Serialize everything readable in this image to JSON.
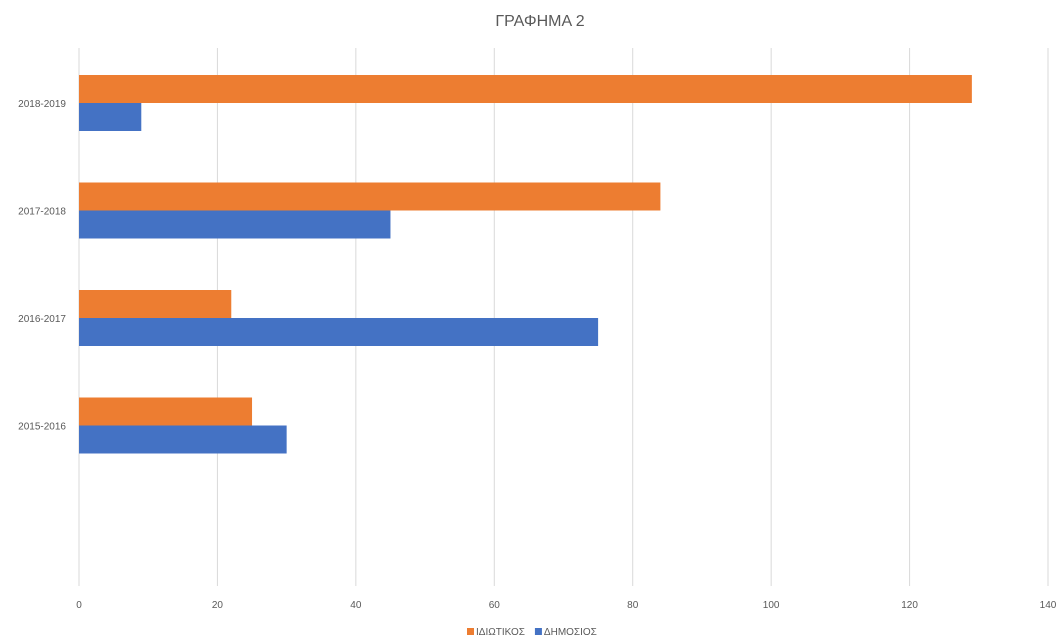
{
  "chart_data": {
    "type": "bar",
    "orientation": "horizontal",
    "title": "ΓΡΑΦΗΜΑ 2",
    "categories": [
      "2015-2016",
      "2016-2017",
      "2017-2018",
      "2018-2019"
    ],
    "series": [
      {
        "name": "ΙΔΙΩΤΙΚΟΣ",
        "color": "#ed7d31",
        "values": [
          25,
          22,
          84,
          129
        ]
      },
      {
        "name": "ΔΗΜΟΣΙΟΣ",
        "color": "#4472c4",
        "values": [
          30,
          75,
          45,
          9
        ]
      }
    ],
    "xlim": [
      0,
      140
    ],
    "xticks": [
      "0",
      "20",
      "40",
      "60",
      "80",
      "100",
      "120",
      "140"
    ],
    "grid": true,
    "legend_position": "bottom"
  }
}
